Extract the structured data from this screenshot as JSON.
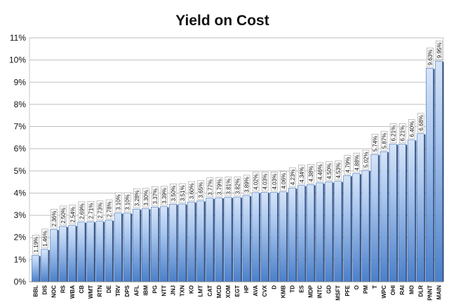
{
  "chart_data": {
    "type": "bar",
    "title": "Yield on Cost",
    "categories": [
      "BBL",
      "DIS",
      "NOC",
      "RS",
      "WBA",
      "CB",
      "WMT",
      "RTN",
      "DE",
      "TRV",
      "DPS",
      "AFL",
      "IBM",
      "PG",
      "NTT",
      "JNJ",
      "TXN",
      "KO",
      "LMT",
      "CAT",
      "MCD",
      "XOM",
      "EGT",
      "HP",
      "AVA",
      "CVX",
      "D",
      "KMB",
      "TD",
      "ES",
      "MDP",
      "INTC",
      "GD",
      "MSFT",
      "PFE",
      "O",
      "PM",
      "T",
      "WPC",
      "OHI",
      "RAI",
      "MO",
      "DLR",
      "PNNT",
      "MAIN"
    ],
    "values": [
      1.19,
      1.46,
      2.36,
      2.5,
      2.54,
      2.69,
      2.71,
      2.73,
      2.78,
      3.1,
      3.1,
      3.28,
      3.3,
      3.37,
      3.39,
      3.5,
      3.51,
      3.6,
      3.65,
      3.77,
      3.79,
      3.81,
      3.82,
      3.89,
      4.02,
      4.03,
      4.03,
      4.06,
      4.23,
      4.34,
      4.38,
      4.46,
      4.5,
      4.53,
      4.79,
      4.88,
      5.02,
      5.74,
      5.87,
      6.21,
      6.21,
      6.4,
      6.68,
      9.63,
      9.95
    ],
    "value_labels": [
      "1.19%",
      "1.46%",
      "2.36%",
      "2.50%",
      "2.54%",
      "2.69%",
      "2.71%",
      "2.73%",
      "2.78%",
      "3.10%",
      "3.10%",
      "3.28%",
      "3.30%",
      "3.37%",
      "3.39%",
      "3.50%",
      "3.51%",
      "3.60%",
      "3.65%",
      "3.77%",
      "3.79%",
      "3.81%",
      "3.82%",
      "3.89%",
      "4.02%",
      "4.03%",
      "4.03%",
      "4.06%",
      "4.23%",
      "4.34%",
      "4.38%",
      "4.46%",
      "4.50%",
      "4.53%",
      "4.79%",
      "4.88%",
      "5.02%",
      "5.74%",
      "5.87%",
      "6.21%",
      "6.21%",
      "6.40%",
      "6.68%",
      "9.63%",
      "9.95%"
    ],
    "y_ticks": [
      "0%",
      "1%",
      "2%",
      "3%",
      "4%",
      "5%",
      "6%",
      "7%",
      "8%",
      "9%",
      "10%",
      "11%"
    ],
    "ylim": [
      0,
      11
    ],
    "xlabel": "",
    "ylabel": "",
    "grid": true,
    "legend": "none",
    "colors": {
      "bar_top": "#d6e4f7",
      "bar_bottom": "#4a7fc9",
      "bar_edge": "#3c6fb8",
      "bar_shadow": "#1e3560"
    }
  }
}
